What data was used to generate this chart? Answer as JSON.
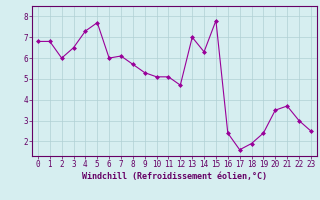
{
  "x": [
    0,
    1,
    2,
    3,
    4,
    5,
    6,
    7,
    8,
    9,
    10,
    11,
    12,
    13,
    14,
    15,
    16,
    17,
    18,
    19,
    20,
    21,
    22,
    23
  ],
  "y": [
    6.8,
    6.8,
    6.0,
    6.5,
    7.3,
    7.7,
    6.0,
    6.1,
    5.7,
    5.3,
    5.1,
    5.1,
    4.7,
    7.0,
    6.3,
    7.8,
    2.4,
    1.6,
    1.9,
    2.4,
    3.5,
    3.7,
    3.0,
    2.5
  ],
  "line_color": "#990099",
  "marker": "D",
  "marker_size": 2.0,
  "bg_color": "#d6eef0",
  "grid_color": "#b0d0d4",
  "spine_color": "#660066",
  "xlabel": "Windchill (Refroidissement éolien,°C)",
  "ylim": [
    1.3,
    8.5
  ],
  "xlim": [
    -0.5,
    23.5
  ],
  "yticks": [
    2,
    3,
    4,
    5,
    6,
    7,
    8
  ],
  "xticks": [
    0,
    1,
    2,
    3,
    4,
    5,
    6,
    7,
    8,
    9,
    10,
    11,
    12,
    13,
    14,
    15,
    16,
    17,
    18,
    19,
    20,
    21,
    22,
    23
  ],
  "tick_color": "#660066",
  "font_size": 5.5,
  "label_font_size": 6.0,
  "line_width": 0.8
}
